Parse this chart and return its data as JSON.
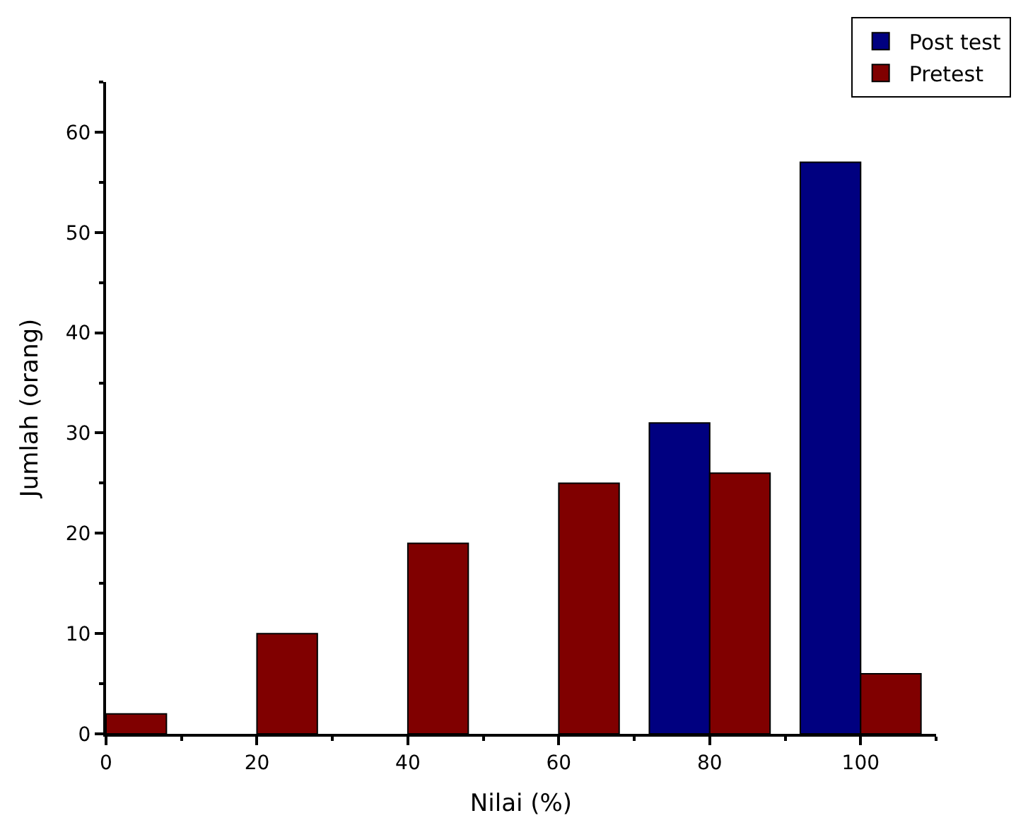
{
  "chart_data": {
    "type": "bar",
    "xlabel": "Nilai (%)",
    "ylabel": "Jumlah (orang)",
    "x": [
      0,
      20,
      40,
      60,
      80,
      100
    ],
    "series": [
      {
        "name": "Post test",
        "color": "#000080",
        "values": [
          null,
          null,
          null,
          null,
          31,
          57
        ]
      },
      {
        "name": "Pretest",
        "color": "#800000",
        "values": [
          2,
          10,
          19,
          25,
          26,
          6
        ]
      }
    ],
    "xlim": [
      0,
      110
    ],
    "xticks": [
      0,
      20,
      40,
      60,
      80,
      100
    ],
    "ylim": [
      0,
      65
    ],
    "yticks": [
      0,
      10,
      20,
      30,
      40,
      50,
      60
    ],
    "legend": "top right"
  }
}
